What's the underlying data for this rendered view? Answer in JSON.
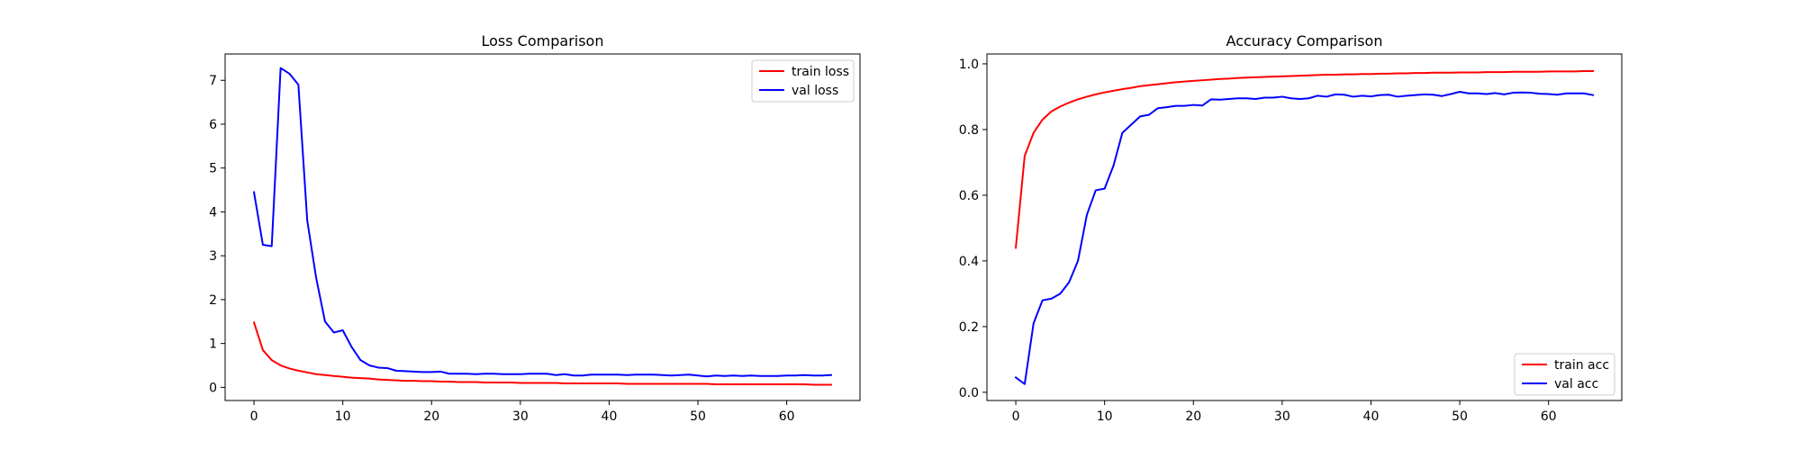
{
  "chart_data": [
    {
      "type": "line",
      "title": "Loss Comparison",
      "xlabel": "",
      "ylabel": "",
      "xlim": [
        -3.25,
        68.25
      ],
      "ylim": [
        -0.3,
        7.6
      ],
      "xticks": [
        0,
        10,
        20,
        30,
        40,
        50,
        60
      ],
      "yticks": [
        0,
        1,
        2,
        3,
        4,
        5,
        6,
        7
      ],
      "grid": false,
      "legend": "top-right",
      "series": [
        {
          "name": "train loss",
          "color": "#ff0000",
          "x": [
            0,
            1,
            2,
            3,
            4,
            5,
            6,
            7,
            8,
            9,
            10,
            11,
            12,
            13,
            14,
            15,
            16,
            17,
            18,
            19,
            20,
            21,
            22,
            23,
            24,
            25,
            26,
            27,
            28,
            29,
            30,
            31,
            32,
            33,
            34,
            35,
            36,
            37,
            38,
            39,
            40,
            41,
            42,
            43,
            44,
            45,
            46,
            47,
            48,
            49,
            50,
            51,
            52,
            53,
            54,
            55,
            56,
            57,
            58,
            59,
            60,
            61,
            62,
            63,
            64,
            65
          ],
          "values": [
            1.48,
            0.85,
            0.62,
            0.5,
            0.43,
            0.38,
            0.34,
            0.3,
            0.28,
            0.26,
            0.24,
            0.22,
            0.21,
            0.2,
            0.18,
            0.17,
            0.16,
            0.15,
            0.15,
            0.14,
            0.14,
            0.13,
            0.13,
            0.12,
            0.12,
            0.12,
            0.11,
            0.11,
            0.11,
            0.11,
            0.1,
            0.1,
            0.1,
            0.1,
            0.1,
            0.09,
            0.09,
            0.09,
            0.09,
            0.09,
            0.09,
            0.09,
            0.08,
            0.08,
            0.08,
            0.08,
            0.08,
            0.08,
            0.08,
            0.08,
            0.08,
            0.08,
            0.07,
            0.07,
            0.07,
            0.07,
            0.07,
            0.07,
            0.07,
            0.07,
            0.07,
            0.07,
            0.07,
            0.06,
            0.06,
            0.06
          ]
        },
        {
          "name": "val loss",
          "color": "#0000ff",
          "x": [
            0,
            1,
            2,
            3,
            4,
            5,
            6,
            7,
            8,
            9,
            10,
            11,
            12,
            13,
            14,
            15,
            16,
            17,
            18,
            19,
            20,
            21,
            22,
            23,
            24,
            25,
            26,
            27,
            28,
            29,
            30,
            31,
            32,
            33,
            34,
            35,
            36,
            37,
            38,
            39,
            40,
            41,
            42,
            43,
            44,
            45,
            46,
            47,
            48,
            49,
            50,
            51,
            52,
            53,
            54,
            55,
            56,
            57,
            58,
            59,
            60,
            61,
            62,
            63,
            64,
            65
          ],
          "values": [
            4.45,
            3.25,
            3.22,
            7.28,
            7.15,
            6.9,
            3.8,
            2.5,
            1.5,
            1.25,
            1.3,
            0.92,
            0.62,
            0.5,
            0.45,
            0.44,
            0.38,
            0.37,
            0.36,
            0.35,
            0.35,
            0.36,
            0.31,
            0.31,
            0.31,
            0.3,
            0.31,
            0.31,
            0.3,
            0.3,
            0.3,
            0.31,
            0.31,
            0.31,
            0.28,
            0.3,
            0.27,
            0.27,
            0.29,
            0.29,
            0.29,
            0.29,
            0.28,
            0.29,
            0.29,
            0.29,
            0.28,
            0.27,
            0.28,
            0.29,
            0.27,
            0.25,
            0.27,
            0.26,
            0.27,
            0.26,
            0.27,
            0.26,
            0.26,
            0.26,
            0.27,
            0.27,
            0.28,
            0.27,
            0.27,
            0.28
          ]
        }
      ]
    },
    {
      "type": "line",
      "title": "Accuracy Comparison",
      "xlabel": "",
      "ylabel": "",
      "xlim": [
        -3.25,
        68.25
      ],
      "ylim": [
        -0.025,
        1.03
      ],
      "xticks": [
        0,
        10,
        20,
        30,
        40,
        50,
        60
      ],
      "yticks": [
        0.0,
        0.2,
        0.4,
        0.6,
        0.8,
        1.0
      ],
      "ytick_labels": [
        "0.0",
        "0.2",
        "0.4",
        "0.6",
        "0.8",
        "1.0"
      ],
      "grid": false,
      "legend": "bottom-right",
      "series": [
        {
          "name": "train acc",
          "color": "#ff0000",
          "x": [
            0,
            1,
            2,
            3,
            4,
            5,
            6,
            7,
            8,
            9,
            10,
            11,
            12,
            13,
            14,
            15,
            16,
            17,
            18,
            19,
            20,
            21,
            22,
            23,
            24,
            25,
            26,
            27,
            28,
            29,
            30,
            31,
            32,
            33,
            34,
            35,
            36,
            37,
            38,
            39,
            40,
            41,
            42,
            43,
            44,
            45,
            46,
            47,
            48,
            49,
            50,
            51,
            52,
            53,
            54,
            55,
            56,
            57,
            58,
            59,
            60,
            61,
            62,
            63,
            64,
            65
          ],
          "values": [
            0.44,
            0.72,
            0.79,
            0.83,
            0.855,
            0.87,
            0.882,
            0.892,
            0.9,
            0.907,
            0.913,
            0.918,
            0.923,
            0.927,
            0.932,
            0.935,
            0.938,
            0.941,
            0.944,
            0.946,
            0.948,
            0.95,
            0.952,
            0.954,
            0.955,
            0.957,
            0.958,
            0.959,
            0.96,
            0.961,
            0.962,
            0.963,
            0.964,
            0.965,
            0.966,
            0.967,
            0.967,
            0.968,
            0.968,
            0.969,
            0.969,
            0.97,
            0.97,
            0.971,
            0.971,
            0.972,
            0.972,
            0.973,
            0.973,
            0.973,
            0.974,
            0.974,
            0.974,
            0.975,
            0.975,
            0.975,
            0.976,
            0.976,
            0.976,
            0.976,
            0.977,
            0.977,
            0.977,
            0.977,
            0.978,
            0.978
          ]
        },
        {
          "name": "val acc",
          "color": "#0000ff",
          "x": [
            0,
            1,
            2,
            3,
            4,
            5,
            6,
            7,
            8,
            9,
            10,
            11,
            12,
            13,
            14,
            15,
            16,
            17,
            18,
            19,
            20,
            21,
            22,
            23,
            24,
            25,
            26,
            27,
            28,
            29,
            30,
            31,
            32,
            33,
            34,
            35,
            36,
            37,
            38,
            39,
            40,
            41,
            42,
            43,
            44,
            45,
            46,
            47,
            48,
            49,
            50,
            51,
            52,
            53,
            54,
            55,
            56,
            57,
            58,
            59,
            60,
            61,
            62,
            63,
            64,
            65
          ],
          "values": [
            0.045,
            0.025,
            0.21,
            0.28,
            0.285,
            0.3,
            0.335,
            0.4,
            0.54,
            0.615,
            0.62,
            0.69,
            0.79,
            0.815,
            0.84,
            0.845,
            0.865,
            0.868,
            0.872,
            0.872,
            0.875,
            0.873,
            0.892,
            0.891,
            0.893,
            0.895,
            0.895,
            0.893,
            0.897,
            0.897,
            0.9,
            0.895,
            0.893,
            0.895,
            0.903,
            0.9,
            0.907,
            0.906,
            0.9,
            0.903,
            0.901,
            0.905,
            0.906,
            0.9,
            0.903,
            0.905,
            0.907,
            0.906,
            0.902,
            0.908,
            0.915,
            0.91,
            0.91,
            0.908,
            0.911,
            0.907,
            0.912,
            0.913,
            0.912,
            0.909,
            0.908,
            0.906,
            0.91,
            0.91,
            0.91,
            0.905
          ]
        }
      ]
    }
  ]
}
